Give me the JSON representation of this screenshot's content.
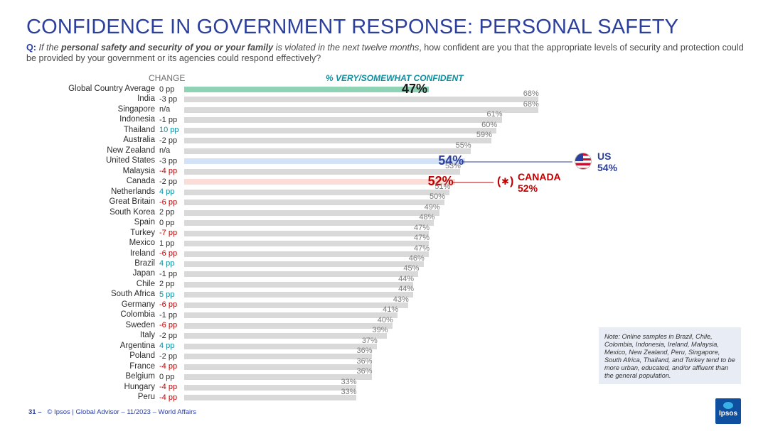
{
  "title": "CONFIDENCE IN GOVERNMENT RESPONSE: PERSONAL SAFETY",
  "question": {
    "prefix": "Q:",
    "part1": "If the",
    "bold1": "personal safety and security of you or your family",
    "part2": "is violated in the next twelve months",
    "part3": ", how confident are you that the appropriate levels of security and protection could be provided by your government or its agencies could respond effectively?"
  },
  "headers": {
    "change": "CHANGE",
    "percent": "% VERY/SOMEWHAT CONFIDENT"
  },
  "colors": {
    "bar_default": "#d9d9d9",
    "bar_global": "#8fd3b6",
    "bar_us": "#d4e2f7",
    "bar_canada": "#f9ddd6",
    "change_neutral": "#2c2c2c",
    "change_positive": "#0b8fa0",
    "change_negative": "#c00000",
    "us_color": "#2b3f9e",
    "canada_color": "#c00000",
    "global_label_color": "#1a1a1a"
  },
  "chart_data": {
    "type": "bar",
    "orientation": "horizontal",
    "title": "% VERY/SOMEWHAT CONFIDENT",
    "xlim": [
      0,
      100
    ],
    "categories": [
      "Global Country Average",
      "India",
      "Singapore",
      "Indonesia",
      "Thailand",
      "Australia",
      "New Zealand",
      "United States",
      "Malaysia",
      "Canada",
      "Netherlands",
      "Great Britain",
      "South Korea",
      "Spain",
      "Turkey",
      "Mexico",
      "Ireland",
      "Brazil",
      "Japan",
      "Chile",
      "South Africa",
      "Germany",
      "Colombia",
      "Sweden",
      "Italy",
      "Argentina",
      "Poland",
      "France",
      "Belgium",
      "Hungary",
      "Peru"
    ],
    "values": [
      47,
      68,
      68,
      61,
      60,
      59,
      55,
      54,
      53,
      52,
      51,
      50,
      49,
      48,
      47,
      47,
      47,
      46,
      45,
      44,
      44,
      43,
      41,
      40,
      39,
      37,
      36,
      36,
      36,
      33,
      33
    ],
    "value_labels": [
      "47%",
      "68%",
      "68%",
      "61%",
      "60%",
      "59%",
      "55%",
      "54%",
      "53%",
      "52%",
      "51%",
      "50%",
      "49%",
      "48%",
      "47%",
      "47%",
      "47%",
      "46%",
      "45%",
      "44%",
      "44%",
      "43%",
      "41%",
      "40%",
      "39%",
      "37%",
      "36%",
      "36%",
      "36%",
      "33%",
      "33%"
    ],
    "changes": [
      "0 pp",
      "-3 pp",
      "n/a",
      "-1 pp",
      "10 pp",
      "-2 pp",
      "n/a",
      "-3 pp",
      "-4 pp",
      "-2 pp",
      "4 pp",
      "-6 pp",
      "2 pp",
      "0 pp",
      "-7 pp",
      "1 pp",
      "-6 pp",
      "4 pp",
      "-1 pp",
      "2 pp",
      "5 pp",
      "-6 pp",
      "-1 pp",
      "-6 pp",
      "-2 pp",
      "4 pp",
      "-2 pp",
      "-4 pp",
      "0 pp",
      "-4 pp",
      "-4 pp"
    ],
    "change_tone": [
      "neutral",
      "neutral",
      "neutral",
      "neutral",
      "positive",
      "neutral",
      "neutral",
      "neutral",
      "negative",
      "neutral",
      "positive",
      "negative",
      "neutral",
      "neutral",
      "negative",
      "neutral",
      "negative",
      "positive",
      "neutral",
      "neutral",
      "positive",
      "negative",
      "neutral",
      "negative",
      "neutral",
      "positive",
      "neutral",
      "negative",
      "neutral",
      "negative",
      "negative"
    ],
    "highlight": {
      "Global Country Average": "global",
      "United States": "us",
      "Canada": "canada"
    }
  },
  "callouts": {
    "us": {
      "name": "US",
      "value": "54%",
      "flag_icon": "us-flag-icon"
    },
    "canada": {
      "name": "CANADA",
      "value": "52%",
      "flag_icon": "canada-flag-icon"
    }
  },
  "note": "Note: Online samples in Brazil, Chile, Colombia, Indonesia, Ireland, Malaysia, Mexico, New Zealand, Peru, Singapore, South Africa, Thailand, and Turkey tend to be more urban, educated, and/or affluent than the general population.",
  "footer": {
    "page": "31 –",
    "text": "© Ipsos | Global Advisor – 11/2023 – World Affairs"
  },
  "logo_text": "Ipsos"
}
